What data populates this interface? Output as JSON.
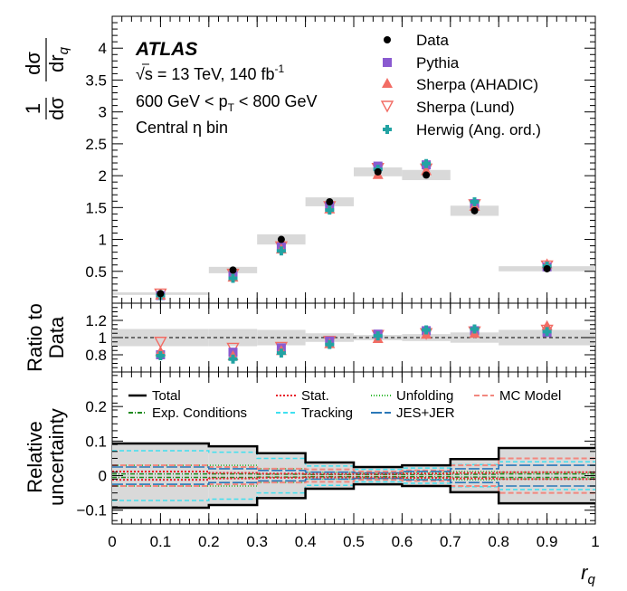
{
  "colors": {
    "data": "#000000",
    "pythia": "#8a5ad0",
    "sherpa_ahadic": "#f26c64",
    "sherpa_lund": "#f26c64",
    "herwig": "#22a3a3",
    "band": "#d9d9d9"
  },
  "annotation": {
    "experiment": "ATLAS",
    "energy": "√s = 13 TeV, 140 fb",
    "energy_sup": "-1",
    "pt_left": "600 GeV < p",
    "pt_sub": "T",
    "pt_right": " < 800 GeV",
    "eta_bin": "Central η bin"
  },
  "chart_data": [
    {
      "type": "scatter",
      "title": "",
      "ylabel": "1/dσ dσ/dr_q",
      "ylim": [
        0,
        4.5
      ],
      "yticks": [
        0.5,
        1,
        1.5,
        2,
        2.5,
        3,
        3.5,
        4
      ],
      "ytick_labels": [
        "0.5",
        "1",
        "1.5",
        "2",
        "2.5",
        "3",
        "3.5",
        "4"
      ],
      "bins": [
        [
          0,
          0.2
        ],
        [
          0.2,
          0.3
        ],
        [
          0.3,
          0.4
        ],
        [
          0.4,
          0.5
        ],
        [
          0.5,
          0.6
        ],
        [
          0.6,
          0.7
        ],
        [
          0.7,
          0.8
        ],
        [
          0.8,
          1.0
        ]
      ],
      "x": [
        0.1,
        0.25,
        0.35,
        0.45,
        0.55,
        0.65,
        0.75,
        0.9
      ],
      "band_halfwidth": [
        0.02,
        0.05,
        0.08,
        0.07,
        0.07,
        0.08,
        0.08,
        0.04
      ],
      "series": [
        {
          "name": "Data",
          "marker": "dot",
          "values": [
            0.15,
            0.52,
            1.0,
            1.59,
            2.06,
            2.01,
            1.45,
            0.54
          ]
        },
        {
          "name": "Pythia",
          "marker": "square",
          "values": [
            0.12,
            0.43,
            0.88,
            1.52,
            2.15,
            2.17,
            1.56,
            0.57
          ]
        },
        {
          "name": "Sherpa (AHADIC)",
          "marker": "triangle-up",
          "values": [
            0.13,
            0.41,
            0.85,
            1.48,
            2.02,
            2.08,
            1.52,
            0.62
          ]
        },
        {
          "name": "Sherpa (Lund)",
          "marker": "triangle-down-open",
          "values": [
            0.15,
            0.46,
            0.89,
            1.52,
            2.12,
            2.11,
            1.55,
            0.59
          ]
        },
        {
          "name": "Herwig (Ang. ord.)",
          "marker": "plus",
          "values": [
            0.12,
            0.39,
            0.82,
            1.46,
            2.1,
            2.19,
            1.59,
            0.58
          ]
        }
      ]
    },
    {
      "type": "scatter",
      "ylabel": "Ratio to Data",
      "ylim": [
        0.6,
        1.4
      ],
      "yticks": [
        0.8,
        1.0,
        1.2
      ],
      "ytick_labels": [
        "0.8",
        "1",
        "1.2"
      ],
      "x": [
        0.1,
        0.25,
        0.35,
        0.45,
        0.55,
        0.65,
        0.75,
        0.9
      ],
      "band_halfwidth": [
        0.1,
        0.1,
        0.09,
        0.05,
        0.03,
        0.04,
        0.06,
        0.09
      ],
      "series": [
        {
          "name": "Pythia",
          "values": [
            0.8,
            0.83,
            0.88,
            0.96,
            1.04,
            1.08,
            1.08,
            1.06
          ]
        },
        {
          "name": "Sherpa (AHADIC)",
          "values": [
            0.84,
            0.79,
            0.85,
            0.93,
            0.99,
            1.04,
            1.05,
            1.14
          ]
        },
        {
          "name": "Sherpa (Lund)",
          "values": [
            0.95,
            0.88,
            0.89,
            0.96,
            1.03,
            1.05,
            1.07,
            1.09
          ]
        },
        {
          "name": "Herwig (Ang. ord.)",
          "values": [
            0.79,
            0.75,
            0.82,
            0.92,
            1.02,
            1.09,
            1.1,
            1.07
          ]
        }
      ]
    },
    {
      "type": "line",
      "ylabel": "Relative uncertainty",
      "xlabel": "r_q",
      "ylim": [
        -0.14,
        0.3
      ],
      "yticks": [
        -0.1,
        0,
        0.1,
        0.2
      ],
      "ytick_labels": [
        "−0.1",
        "0",
        "0.1",
        "0.2"
      ],
      "xlim": [
        0,
        1
      ],
      "xticks": [
        0,
        0.1,
        0.2,
        0.3,
        0.4,
        0.5,
        0.6,
        0.7,
        0.8,
        0.9,
        1
      ],
      "xtick_labels": [
        "0",
        "0.1",
        "0.2",
        "0.3",
        "0.4",
        "0.5",
        "0.6",
        "0.7",
        "0.8",
        "0.9",
        "1"
      ],
      "bin_edges": [
        0,
        0.2,
        0.3,
        0.4,
        0.5,
        0.6,
        0.7,
        0.8,
        1.0
      ],
      "series": [
        {
          "name": "Total",
          "style": "solid-black",
          "values": [
            0.093,
            0.085,
            0.065,
            0.038,
            0.025,
            0.03,
            0.048,
            0.08
          ]
        },
        {
          "name": "Stat.",
          "style": "dotted-red",
          "values": [
            0.012,
            0.008,
            0.006,
            0.005,
            0.005,
            0.006,
            0.008,
            0.01
          ]
        },
        {
          "name": "Unfolding",
          "style": "dotted-green",
          "values": [
            0.03,
            0.03,
            0.02,
            0.01,
            0.008,
            0.01,
            0.012,
            0.01
          ]
        },
        {
          "name": "MC Model",
          "style": "dashed-salmon",
          "values": [
            0.03,
            0.025,
            0.02,
            0.018,
            0.012,
            0.015,
            0.03,
            0.05
          ]
        },
        {
          "name": "Exp. Conditions",
          "style": "dashdot-green",
          "values": [
            0.005,
            0.005,
            0.004,
            0.003,
            0.003,
            0.003,
            0.004,
            0.005
          ]
        },
        {
          "name": "Tracking",
          "style": "dashed-cyan",
          "values": [
            0.072,
            0.068,
            0.05,
            0.028,
            0.018,
            0.022,
            0.032,
            0.04
          ]
        },
        {
          "name": "JES+JER",
          "style": "longdash-blue",
          "values": [
            0.025,
            0.02,
            0.015,
            0.01,
            0.008,
            0.012,
            0.02,
            0.03
          ]
        }
      ]
    }
  ]
}
